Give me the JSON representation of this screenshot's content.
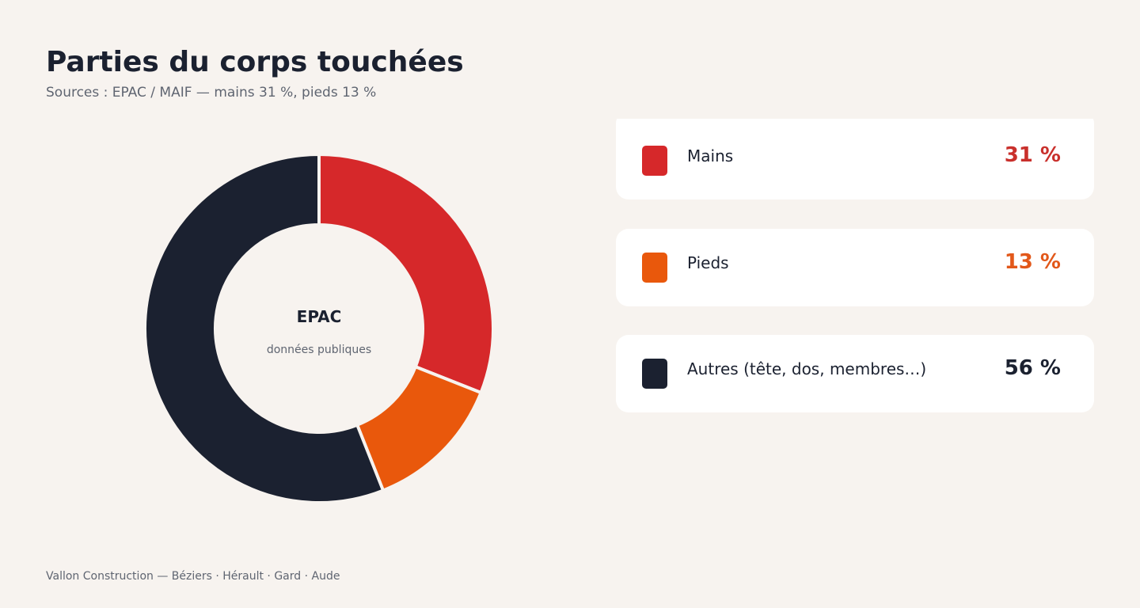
{
  "header": {
    "title": "Parties du corps touchées",
    "subtitle": "Sources : EPAC / MAIF — mains 31 %, pieds 13 %"
  },
  "donut_center": {
    "title": "EPAC",
    "subtitle": "données publiques"
  },
  "legend": {
    "items": [
      {
        "label": "Mains",
        "value_text": "31 %",
        "color": "#d6282a",
        "value_color": "#c9302c"
      },
      {
        "label": "Pieds",
        "value_text": "13 %",
        "color": "#e9580c",
        "value_color": "#e2581a"
      },
      {
        "label": "Autres (tête, dos, membres…)",
        "value_text": "56 %",
        "color": "#1b2130",
        "value_color": "#1b2130"
      }
    ]
  },
  "footer": {
    "text": "Vallon Construction — Béziers · Hérault · Gard · Aude"
  },
  "chart_data": {
    "type": "pie",
    "categories": [
      "Mains",
      "Pieds",
      "Autres (tête, dos, membres…)"
    ],
    "values": [
      31,
      13,
      56
    ],
    "colors": [
      "#d6282a",
      "#e9580c",
      "#1b2130"
    ],
    "title": "Parties du corps touchées",
    "subtitle": "Sources : EPAC / MAIF — mains 31 %, pieds 13 %",
    "donut": true,
    "legend": "right"
  }
}
